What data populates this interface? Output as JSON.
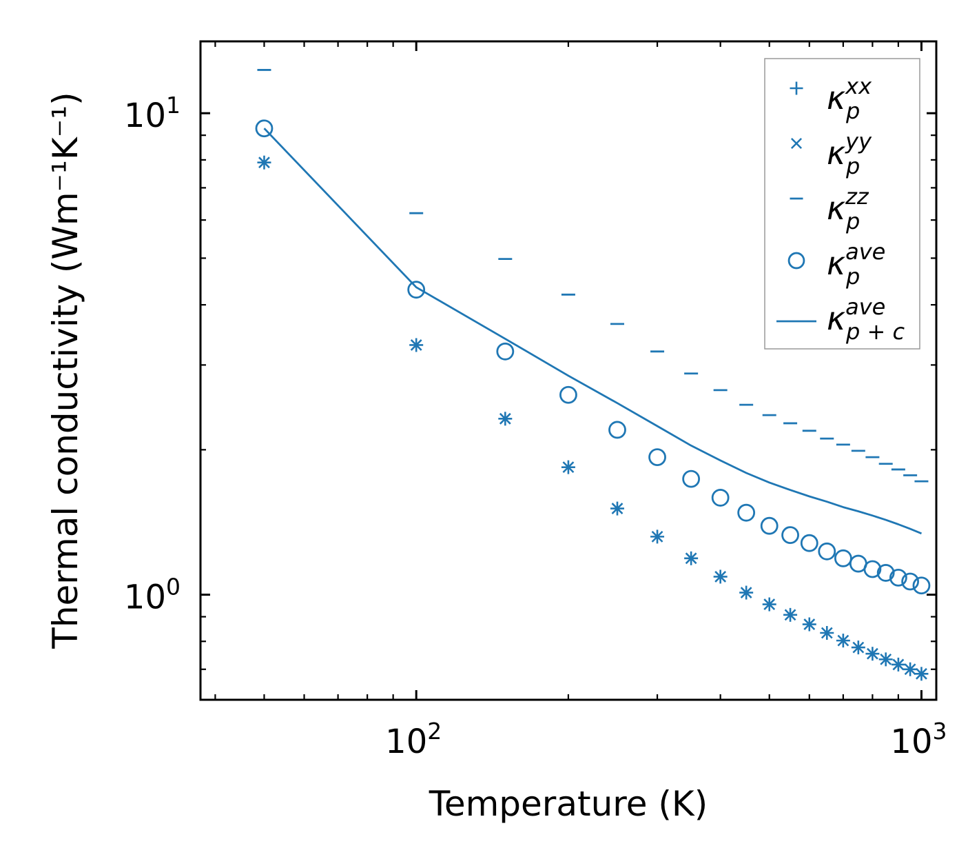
{
  "chart_data": {
    "type": "scatter",
    "xscale": "log",
    "yscale": "log",
    "xlabel": "Temperature (K)",
    "ylabel": "Thermal conductivity (Wm⁻¹K⁻¹)",
    "xlim": [
      37.4,
      1070
    ],
    "ylim": [
      0.605,
      14.1
    ],
    "x_ticks": [
      {
        "value": 100,
        "base": "10",
        "exp": "2"
      },
      {
        "value": 1000,
        "base": "10",
        "exp": "3"
      }
    ],
    "y_ticks": [
      {
        "value": 1,
        "base": "10",
        "exp": "0"
      },
      {
        "value": 10,
        "base": "10",
        "exp": "1"
      }
    ],
    "legend_position": "top-right",
    "color": "#1f77b4",
    "temperatures": [
      50,
      100,
      150,
      200,
      250,
      300,
      350,
      400,
      450,
      500,
      550,
      600,
      650,
      700,
      750,
      800,
      850,
      900,
      950,
      1000
    ],
    "series": [
      {
        "name": "kappa_p^xx",
        "symbol": "κ",
        "sub": "p",
        "sup": "xx",
        "marker": "plus",
        "values": [
          7.9,
          3.3,
          2.32,
          1.84,
          1.51,
          1.32,
          1.19,
          1.09,
          1.01,
          0.955,
          0.908,
          0.868,
          0.833,
          0.803,
          0.777,
          0.754,
          0.734,
          0.716,
          0.7,
          0.685
        ]
      },
      {
        "name": "kappa_p^yy",
        "symbol": "κ",
        "sub": "p",
        "sup": "yy",
        "marker": "x",
        "values": [
          7.9,
          3.3,
          2.32,
          1.84,
          1.51,
          1.32,
          1.19,
          1.09,
          1.01,
          0.955,
          0.908,
          0.868,
          0.833,
          0.803,
          0.777,
          0.754,
          0.734,
          0.716,
          0.7,
          0.685
        ]
      },
      {
        "name": "kappa_p^zz",
        "symbol": "κ",
        "sub": "p",
        "sup": "zz",
        "marker": "hline",
        "values": [
          12.3,
          6.2,
          4.98,
          4.2,
          3.65,
          3.2,
          2.88,
          2.66,
          2.48,
          2.36,
          2.27,
          2.19,
          2.11,
          2.05,
          1.99,
          1.93,
          1.87,
          1.82,
          1.77,
          1.72
        ]
      },
      {
        "name": "kappa_p^ave",
        "symbol": "κ",
        "sub": "p",
        "sup": "ave",
        "marker": "circle",
        "values": [
          9.3,
          4.3,
          3.2,
          2.6,
          2.2,
          1.93,
          1.74,
          1.59,
          1.48,
          1.39,
          1.33,
          1.28,
          1.23,
          1.19,
          1.16,
          1.13,
          1.11,
          1.085,
          1.065,
          1.045
        ]
      },
      {
        "name": "kappa_p+c^ave",
        "symbol": "κ",
        "sub": "p + c",
        "sup": "ave",
        "marker": "line",
        "values": [
          9.3,
          4.35,
          3.4,
          2.85,
          2.5,
          2.24,
          2.04,
          1.9,
          1.79,
          1.71,
          1.65,
          1.6,
          1.56,
          1.52,
          1.49,
          1.46,
          1.43,
          1.4,
          1.37,
          1.34
        ]
      }
    ]
  }
}
